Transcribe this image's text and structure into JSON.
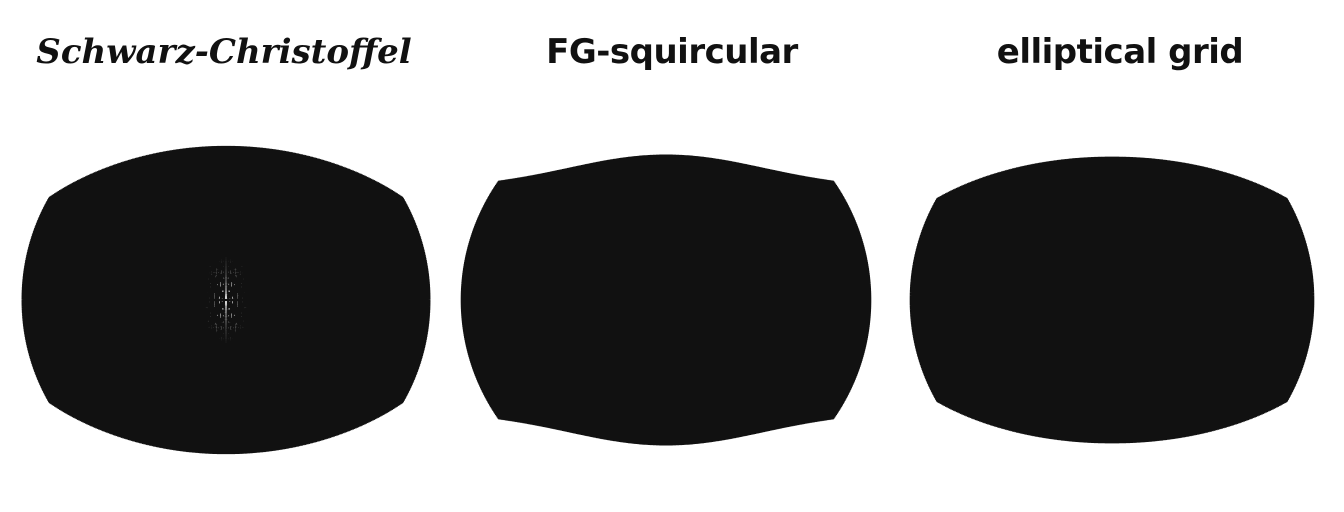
{
  "panels": [
    {
      "title": "Schwarz-Christoffel",
      "mapping": "schwarz-christoffel"
    },
    {
      "title": "FG-squircular",
      "mapping": "fg-squircular"
    },
    {
      "title": "elliptical grid",
      "mapping": "elliptical-grid"
    }
  ],
  "style": {
    "line_color": "#111111",
    "background": "#ffffff"
  },
  "fractal": {
    "type": "H-tree",
    "iterations": 8
  }
}
